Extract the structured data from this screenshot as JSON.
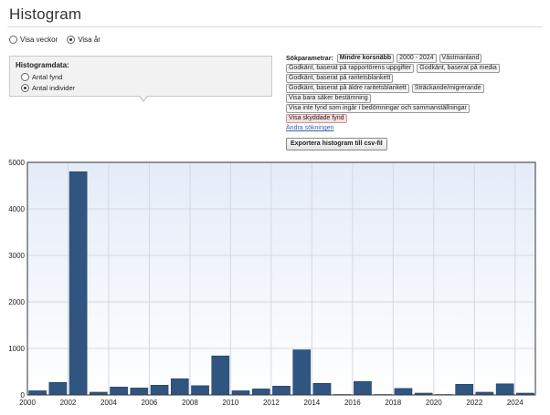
{
  "page": {
    "title": "Histogram"
  },
  "view_options": {
    "weeks_label": "Visa veckor",
    "weeks_selected": false,
    "years_label": "Visa år",
    "years_selected": true
  },
  "histogram_panel": {
    "title": "Histogramdata:",
    "options": [
      {
        "label": "Antal fynd",
        "selected": false
      },
      {
        "label": "Antal individer",
        "selected": true
      }
    ]
  },
  "search_params": {
    "label": "Sökparametrar:",
    "rows": [
      [
        {
          "text": "Mindre korsnäbb",
          "style": "bold"
        },
        {
          "text": "2000 - 2024",
          "style": ""
        },
        {
          "text": "Västmanland",
          "style": ""
        }
      ],
      [
        {
          "text": "Godkänt, baserat på rapportörens uppgifter",
          "style": ""
        },
        {
          "text": "Godkänt, baserat på media",
          "style": ""
        }
      ],
      [
        {
          "text": "Godkänt, baserat på raritetsblankett",
          "style": ""
        }
      ],
      [
        {
          "text": "Godkänt, baserat på äldre raritetsblankett",
          "style": ""
        },
        {
          "text": "Sträckande/migrerande",
          "style": ""
        }
      ],
      [
        {
          "text": "Visa bara säker bestämning",
          "style": ""
        }
      ],
      [
        {
          "text": "Visa inte fynd som ingår i bedömningar och sammanställningar",
          "style": ""
        }
      ],
      [
        {
          "text": "Visa skyddade fynd",
          "style": "protected"
        }
      ]
    ],
    "change_link": "Ändra sökningen"
  },
  "export_button": {
    "label": "Exportera histogram till csv-fil"
  },
  "colors": {
    "bar": "#2f5580",
    "bar_stroke": "#1f3a5a",
    "plot_bg_top": "#e4ecf8",
    "plot_bg_bottom": "#ffffff",
    "grid": "#d4d9e0",
    "chip_protected": "#f7dede",
    "link": "#3a5fb0"
  },
  "chart_data": {
    "type": "bar",
    "x": [
      2000,
      2001,
      2002,
      2003,
      2004,
      2005,
      2006,
      2007,
      2008,
      2009,
      2010,
      2011,
      2012,
      2013,
      2014,
      2015,
      2016,
      2017,
      2018,
      2019,
      2020,
      2021,
      2022,
      2023,
      2024
    ],
    "values": [
      90,
      270,
      4800,
      60,
      170,
      150,
      210,
      350,
      200,
      840,
      90,
      130,
      190,
      970,
      250,
      10,
      290,
      10,
      140,
      40,
      10,
      230,
      60,
      240,
      40
    ],
    "xticks": [
      2000,
      2002,
      2004,
      2006,
      2008,
      2010,
      2012,
      2014,
      2016,
      2018,
      2020,
      2022,
      2024
    ],
    "yticks": [
      0,
      1000,
      2000,
      3000,
      4000,
      5000
    ],
    "xlim": [
      2000,
      2025
    ],
    "ylim": [
      0,
      5000
    ],
    "title": "",
    "xlabel": "",
    "ylabel": "",
    "grid": true
  }
}
